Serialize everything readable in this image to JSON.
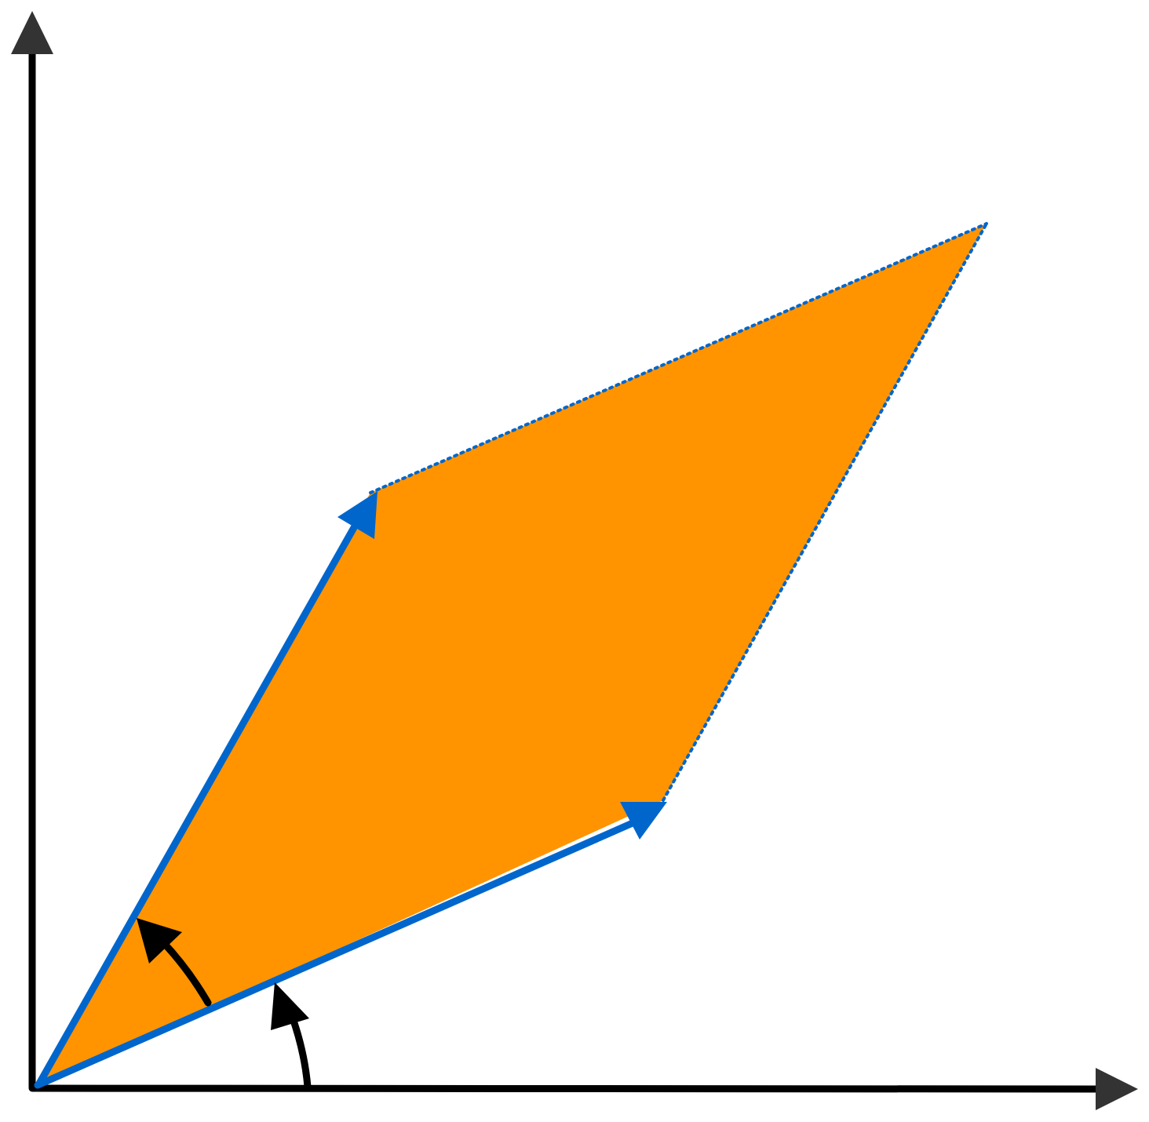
{
  "diagram": {
    "kind": "parallelogram spanned by two vectors from the origin",
    "colors": {
      "background": "#ffffff",
      "axes": "#000000",
      "axis_arrowheads": "#333333",
      "parallelogram_fill": "#ff9400",
      "vectors": "#0066cc",
      "dotted_edges": "#0066cc",
      "angle_arcs": "#000000"
    },
    "axes": [
      "x-axis",
      "y-axis"
    ],
    "vectors": [
      "vector-a",
      "vector-b"
    ],
    "dotted_edges": [
      "edge-from-a-tip",
      "edge-from-b-tip"
    ],
    "angle_arcs": [
      "angle-of-vector-a",
      "angle-of-vector-b"
    ],
    "icons": [
      "arrowhead-icon",
      "curved-arrow-icon"
    ]
  }
}
